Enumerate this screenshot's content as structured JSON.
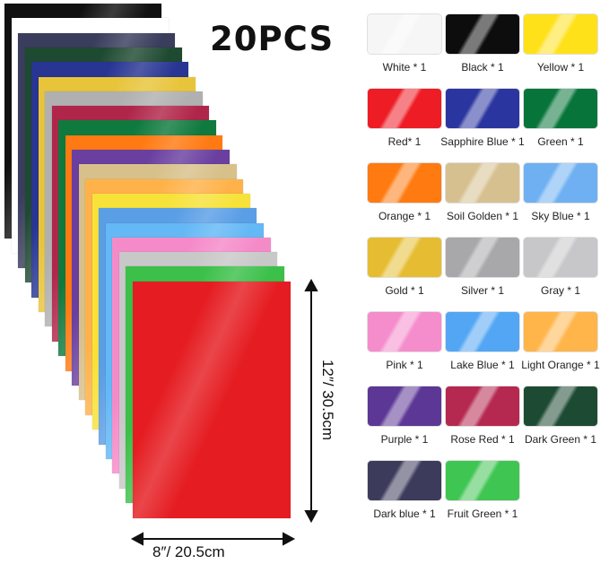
{
  "title": "20PCS",
  "dimensions": {
    "height_label": "12″/ 30.5cm",
    "width_label": "8″/ 20.5cm"
  },
  "stack_colors": [
    "#111111",
    "#ffffff",
    "#3a3d5c",
    "#1f4a32",
    "#283593",
    "#e8c43a",
    "#b0b0b0",
    "#b0264a",
    "#0f7a3e",
    "#ff7a12",
    "#6a3fa0",
    "#d8c08a",
    "#ffb24a",
    "#f7e23a",
    "#5a9ee6",
    "#64b8f5",
    "#f58ac9",
    "#c8c8c8",
    "#3cc04a",
    "#e51d22"
  ],
  "swatches": [
    {
      "label": "White * 1",
      "color": "#f6f6f6"
    },
    {
      "label": "Black * 1",
      "color": "#0d0d0d"
    },
    {
      "label": "Yellow * 1",
      "color": "#ffe11a"
    },
    {
      "label": "Red* 1",
      "color": "#ee1c24"
    },
    {
      "label": "Sapphire Blue * 1",
      "color": "#2b35a0"
    },
    {
      "label": "Green * 1",
      "color": "#07753a"
    },
    {
      "label": "Orange * 1",
      "color": "#ff7a10"
    },
    {
      "label": "Soil Golden * 1",
      "color": "#d6c090"
    },
    {
      "label": "Sky Blue * 1",
      "color": "#6fb0f2"
    },
    {
      "label": "Gold * 1",
      "color": "#e6bd32"
    },
    {
      "label": "Silver * 1",
      "color": "#a8a8ab"
    },
    {
      "label": "Gray * 1",
      "color": "#c7c6c9"
    },
    {
      "label": "Pink * 1",
      "color": "#f58ccc"
    },
    {
      "label": "Lake Blue * 1",
      "color": "#52a6f4"
    },
    {
      "label": "Light Orange * 1",
      "color": "#ffb54a"
    },
    {
      "label": "Purple * 1",
      "color": "#5c3796"
    },
    {
      "label": "Rose Red * 1",
      "color": "#b5284f"
    },
    {
      "label": "Dark Green * 1",
      "color": "#1d4a33"
    },
    {
      "label": "Dark blue * 1",
      "color": "#3c3b5c"
    },
    {
      "label": "Fruit Green * 1",
      "color": "#3fc552"
    }
  ]
}
